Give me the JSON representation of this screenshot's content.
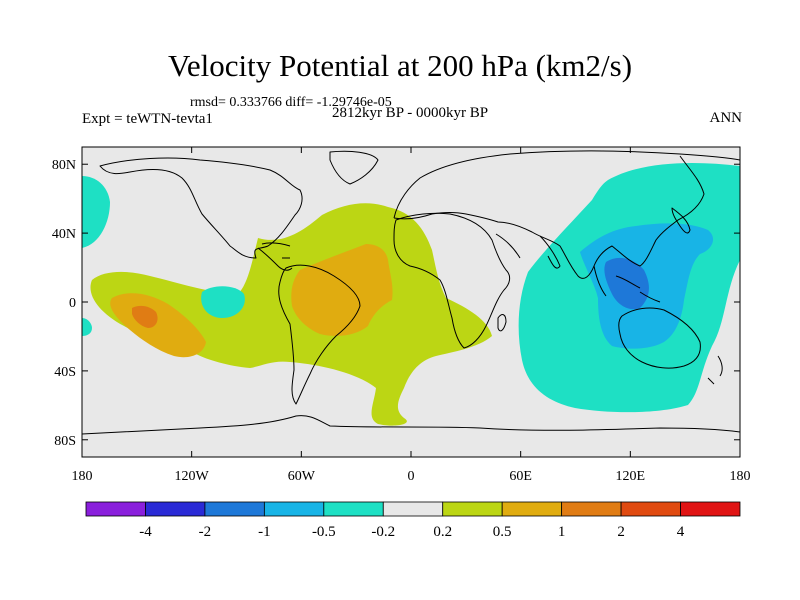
{
  "chart_data": {
    "type": "contour_map",
    "title": "Velocity Potential at 200 hPa (km2/s)",
    "stats": "rmsd= 0.333766 diff= -1.29746e-05",
    "left_label": "Expt = teWTN-tevta1",
    "center_label": "2812kyr BP - 0000kyr BP",
    "right_label": "ANN",
    "lon_range": [
      -180,
      180
    ],
    "lat_range": [
      -90,
      90
    ],
    "x_ticks": [
      {
        "lon": -180,
        "label": "180"
      },
      {
        "lon": -120,
        "label": "120W"
      },
      {
        "lon": -60,
        "label": "60W"
      },
      {
        "lon": 0,
        "label": "0"
      },
      {
        "lon": 60,
        "label": "60E"
      },
      {
        "lon": 120,
        "label": "120E"
      },
      {
        "lon": 180,
        "label": "180"
      }
    ],
    "y_ticks": [
      {
        "lat": 80,
        "label": "80N"
      },
      {
        "lat": 40,
        "label": "40N"
      },
      {
        "lat": 0,
        "label": "0"
      },
      {
        "lat": -40,
        "label": "40S"
      },
      {
        "lat": -80,
        "label": "80S"
      }
    ],
    "colorbar": {
      "levels": [
        "-4",
        "-2",
        "-1",
        "-0.5",
        "-0.2",
        "0.2",
        "0.5",
        "1",
        "2",
        "4"
      ],
      "colors": [
        "#8a1fdc",
        "#2a2ad6",
        "#1e78d8",
        "#18b4e6",
        "#1ee0c4",
        "#e8e8e8",
        "#bcd614",
        "#e0ac10",
        "#e07c14",
        "#e04a10",
        "#e01414"
      ]
    },
    "regions": [
      {
        "name": "atlantic-positive",
        "level": "0.2 to 0.5",
        "color": "#bcd614"
      },
      {
        "name": "southamerica-atlantic-positive",
        "level": "0.5 to 1",
        "color": "#e0ac10"
      },
      {
        "name": "southpacific-positive",
        "level": "0.5 to 1",
        "color": "#e0ac10"
      },
      {
        "name": "southpacific-core",
        "level": "1 to 2",
        "color": "#e07c14"
      },
      {
        "name": "indopacific-negative",
        "level": "-0.5 to -0.2",
        "color": "#1ee0c4"
      },
      {
        "name": "maritime-continent-negative",
        "level": "-1 to -0.5",
        "color": "#18b4e6"
      },
      {
        "name": "maritime-continent-core",
        "level": "-2 to -1",
        "color": "#1e78d8"
      }
    ]
  }
}
